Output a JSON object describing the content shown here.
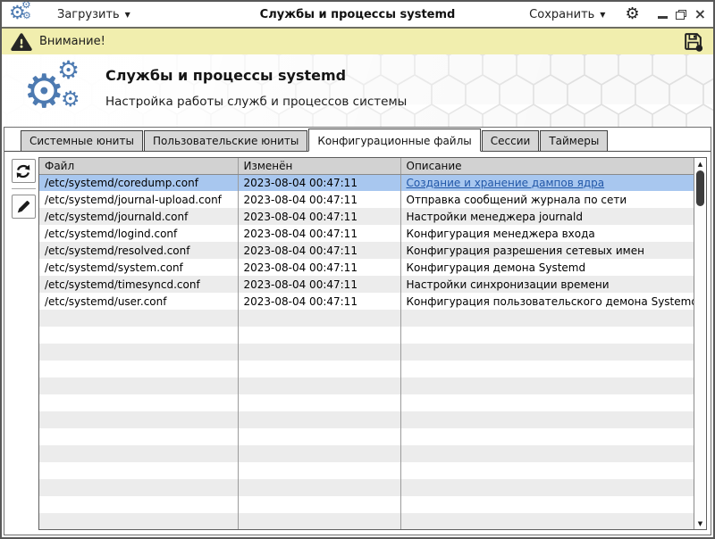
{
  "window": {
    "title": "Службы и процессы systemd",
    "load_button": "Загрузить",
    "save_button": "Сохранить",
    "minimize": "–",
    "close": "×"
  },
  "warning_bar": {
    "text": "Внимание!"
  },
  "header": {
    "title": "Службы и процессы systemd",
    "subtitle": "Настройка работы служб и процессов системы"
  },
  "tabs": [
    {
      "label": "Системные юниты",
      "active": false
    },
    {
      "label": "Пользовательские юниты",
      "active": false
    },
    {
      "label": "Конфигурационные файлы",
      "active": true
    },
    {
      "label": "Сессии",
      "active": false
    },
    {
      "label": "Таймеры",
      "active": false
    }
  ],
  "table": {
    "columns": [
      "Файл",
      "Изменён",
      "Описание"
    ],
    "rows": [
      {
        "file": "/etc/systemd/coredump.conf",
        "modified": "2023-08-04 00:47:11",
        "description": "Создание и хранение дампов ядра",
        "selected": true,
        "link": true
      },
      {
        "file": "/etc/systemd/journal-upload.conf",
        "modified": "2023-08-04 00:47:11",
        "description": "Отправка сообщений журнала по сети",
        "selected": false,
        "link": false
      },
      {
        "file": "/etc/systemd/journald.conf",
        "modified": "2023-08-04 00:47:11",
        "description": "Настройки менеджера journald",
        "selected": false,
        "link": false
      },
      {
        "file": "/etc/systemd/logind.conf",
        "modified": "2023-08-04 00:47:11",
        "description": "Конфигурация менеджера входа",
        "selected": false,
        "link": false
      },
      {
        "file": "/etc/systemd/resolved.conf",
        "modified": "2023-08-04 00:47:11",
        "description": "Конфигурация разрешения сетевых имен",
        "selected": false,
        "link": false
      },
      {
        "file": "/etc/systemd/system.conf",
        "modified": "2023-08-04 00:47:11",
        "description": "Конфигурация демона Systemd",
        "selected": false,
        "link": false
      },
      {
        "file": "/etc/systemd/timesyncd.conf",
        "modified": "2023-08-04 00:47:11",
        "description": "Настройки синхронизации времени",
        "selected": false,
        "link": false
      },
      {
        "file": "/etc/systemd/user.conf",
        "modified": "2023-08-04 00:47:11",
        "description": "Конфигурация пользовательского демона Systemd",
        "selected": false,
        "link": false
      }
    ],
    "filler_rows": 14
  },
  "icons": {
    "app_logo": "gears",
    "gear_glyph": "⚙",
    "warning": "warning-triangle",
    "save_disk": "floppy-disk",
    "refresh": "circular-arrows",
    "edit": "pencil",
    "dropdown_arrow": "▼",
    "scroll_up": "▲",
    "scroll_down": "▼"
  },
  "colors": {
    "accent_blue": "#4d7ab1",
    "selection": "#a8c7ef",
    "warning_bg": "#f1eeae",
    "link": "#2157a8",
    "tab_inactive": "#d6d6d6",
    "row_stripe": "#ececec",
    "table_header": "#d2d2d2"
  }
}
